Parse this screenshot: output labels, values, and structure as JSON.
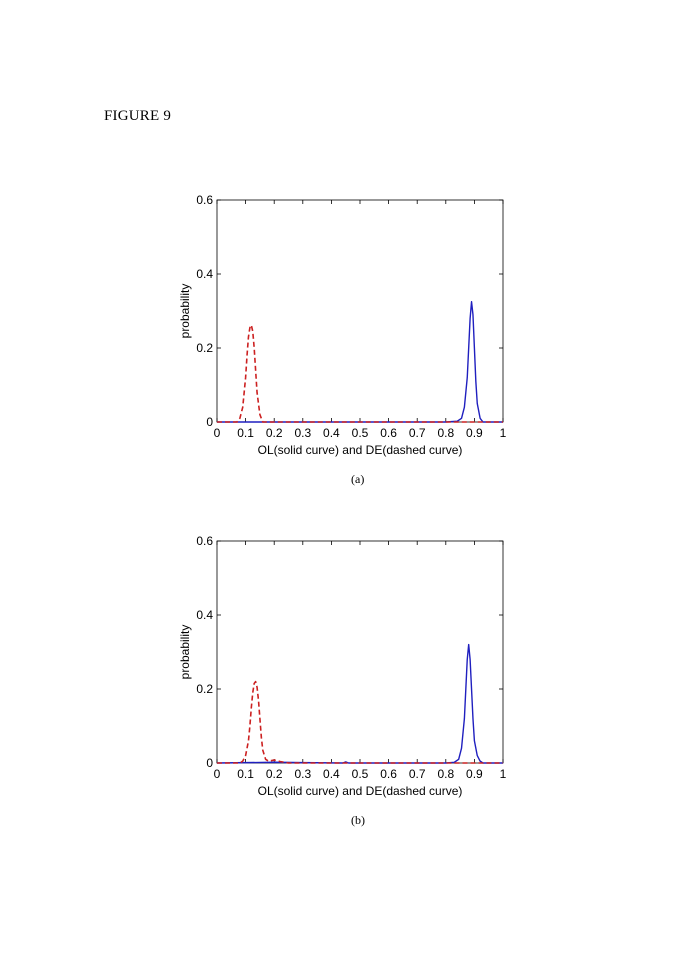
{
  "figure_label": "FIGURE 9",
  "colors": {
    "solid": "#1f1fbf",
    "dashed": "#cc2020",
    "axis": "#000000"
  },
  "chart_data": [
    {
      "type": "line",
      "caption": "(a)",
      "xlabel": "OL(solid curve) and DE(dashed curve)",
      "ylabel": "probability",
      "xlim": [
        0,
        1
      ],
      "ylim": [
        0,
        0.6
      ],
      "xticks": [
        "0",
        "0.1",
        "0.2",
        "0.3",
        "0.4",
        "0.5",
        "0.6",
        "0.7",
        "0.8",
        "0.9",
        "1"
      ],
      "yticks": [
        "0",
        "0.2",
        "0.4",
        "0.6"
      ],
      "grid": false,
      "series": [
        {
          "style": "solid",
          "x": [
            0.0,
            0.5,
            0.8,
            0.84,
            0.855,
            0.865,
            0.875,
            0.88,
            0.885,
            0.89,
            0.895,
            0.9,
            0.905,
            0.91,
            0.92,
            0.93,
            1.0
          ],
          "y": [
            0.0,
            0.0,
            0.0,
            0.002,
            0.01,
            0.04,
            0.12,
            0.2,
            0.28,
            0.325,
            0.29,
            0.2,
            0.11,
            0.05,
            0.01,
            0.0,
            0.0
          ]
        },
        {
          "style": "dashed",
          "x": [
            0.0,
            0.07,
            0.08,
            0.09,
            0.1,
            0.105,
            0.11,
            0.115,
            0.12,
            0.125,
            0.13,
            0.135,
            0.14,
            0.15,
            0.16,
            0.2,
            0.5,
            1.0
          ],
          "y": [
            0.0,
            0.0,
            0.01,
            0.04,
            0.12,
            0.18,
            0.23,
            0.255,
            0.262,
            0.245,
            0.2,
            0.14,
            0.08,
            0.02,
            0.0,
            0.0,
            0.0,
            0.0
          ]
        }
      ]
    },
    {
      "type": "line",
      "caption": "(b)",
      "xlabel": "OL(solid curve) and DE(dashed curve)",
      "ylabel": "probability",
      "xlim": [
        0,
        1
      ],
      "ylim": [
        0,
        0.6
      ],
      "xticks": [
        "0",
        "0.1",
        "0.2",
        "0.3",
        "0.4",
        "0.5",
        "0.6",
        "0.7",
        "0.8",
        "0.9",
        "1"
      ],
      "yticks": [
        "0",
        "0.2",
        "0.4",
        "0.6"
      ],
      "grid": false,
      "series": [
        {
          "style": "solid",
          "x": [
            0.0,
            0.2,
            0.3,
            0.44,
            0.45,
            0.46,
            0.6,
            0.8,
            0.83,
            0.845,
            0.855,
            0.865,
            0.87,
            0.875,
            0.88,
            0.885,
            0.89,
            0.895,
            0.9,
            0.91,
            0.92,
            0.93,
            1.0
          ],
          "y": [
            0.0,
            0.002,
            0.001,
            0.0,
            0.003,
            0.0,
            0.0,
            0.0,
            0.002,
            0.01,
            0.04,
            0.12,
            0.2,
            0.28,
            0.32,
            0.28,
            0.2,
            0.12,
            0.06,
            0.02,
            0.005,
            0.0,
            0.0
          ]
        },
        {
          "style": "dashed",
          "x": [
            0.0,
            0.08,
            0.09,
            0.1,
            0.11,
            0.115,
            0.12,
            0.125,
            0.13,
            0.135,
            0.14,
            0.145,
            0.15,
            0.155,
            0.16,
            0.17,
            0.18,
            0.2,
            0.22,
            0.25,
            0.5,
            1.0
          ],
          "y": [
            0.0,
            0.0,
            0.005,
            0.02,
            0.06,
            0.1,
            0.15,
            0.19,
            0.215,
            0.22,
            0.205,
            0.17,
            0.12,
            0.07,
            0.035,
            0.01,
            0.005,
            0.008,
            0.004,
            0.0,
            0.0,
            0.0
          ]
        }
      ]
    }
  ]
}
